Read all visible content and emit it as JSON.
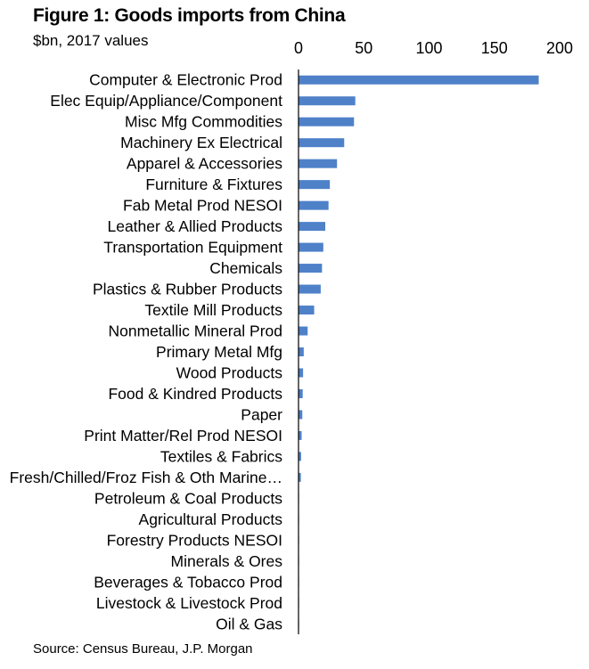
{
  "chart_data": {
    "type": "bar",
    "orientation": "horizontal",
    "title": "Figure 1: Goods imports from China",
    "subtitle": "$bn, 2017 values",
    "source": "Source: Census Bureau, J.P. Morgan",
    "xlim": [
      0,
      200
    ],
    "xticks": [
      0,
      50,
      100,
      150,
      200
    ],
    "xaxis_position": "top",
    "bar_color": "#4f81c9",
    "categories": [
      "Computer & Electronic Prod",
      "Elec Equip/Appliance/Component",
      "Misc Mfg Commodities",
      "Machinery Ex Electrical",
      "Apparel & Accessories",
      "Furniture & Fixtures",
      "Fab Metal Prod NESOI",
      "Leather & Allied Products",
      "Transportation Equipment",
      "Chemicals",
      "Plastics & Rubber Products",
      "Textile Mill Products",
      "Nonmetallic Mineral Prod",
      "Primary Metal Mfg",
      "Wood Products",
      "Food & Kindred Products",
      "Paper",
      "Print Matter/Rel Prod NESOI",
      "Textiles & Fabrics",
      "Fresh/Chilled/Froz Fish & Oth Marine…",
      "Petroleum & Coal Products",
      "Agricultural Products",
      "Forestry Products NESOI",
      "Minerals & Ores",
      "Beverages & Tobacco Prod",
      "Livestock & Livestock Prod",
      "Oil & Gas"
    ],
    "values": [
      184,
      43.5,
      42.5,
      35,
      29.5,
      24,
      23,
      20.5,
      19,
      18,
      17,
      12,
      7,
      4,
      3.5,
      3.2,
      2.9,
      2.4,
      2,
      1.8,
      0.4,
      0.3,
      0.2,
      0.1,
      0.1,
      0.1,
      0.05
    ]
  }
}
